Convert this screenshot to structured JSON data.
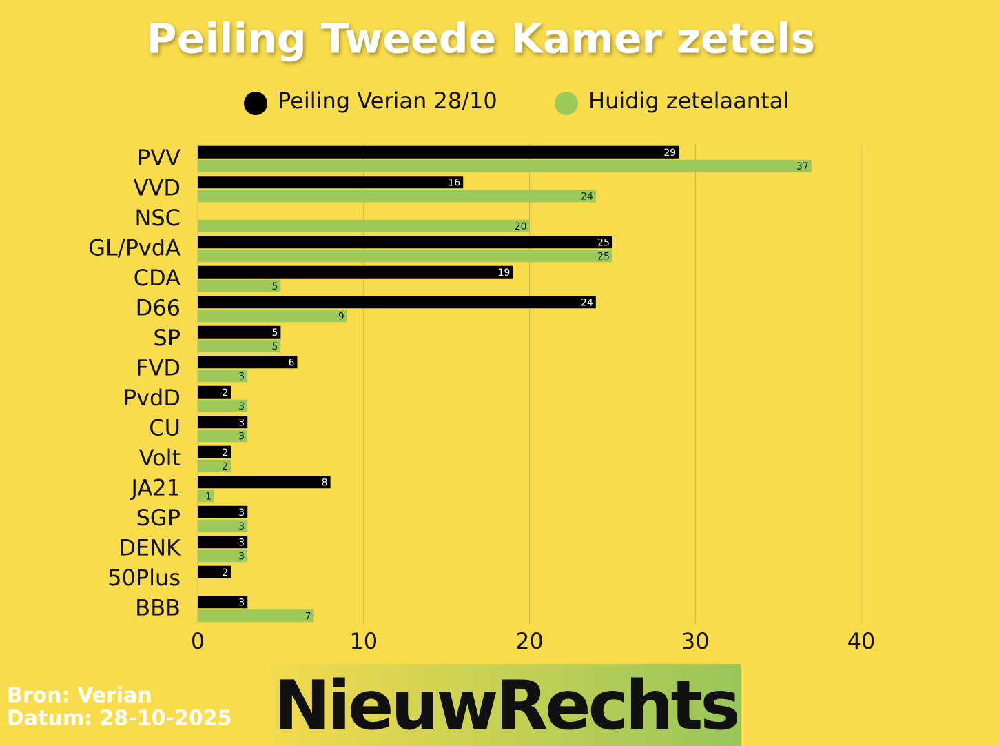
{
  "chart_data": {
    "type": "bar",
    "orientation": "horizontal",
    "title": "Peiling Tweede Kamer zetels",
    "categories": [
      "PVV",
      "VVD",
      "NSC",
      "GL/PvdA",
      "CDA",
      "D66",
      "SP",
      "FVD",
      "PvdD",
      "CU",
      "Volt",
      "JA21",
      "SGP",
      "DENK",
      "50Plus",
      "BBB"
    ],
    "series": [
      {
        "name": "Peiling Verian 28/10",
        "color": "#000000",
        "label_color": "#ffffff",
        "values": [
          29,
          16,
          null,
          25,
          19,
          24,
          5,
          6,
          2,
          3,
          2,
          8,
          3,
          3,
          2,
          3
        ]
      },
      {
        "name": "Huidig zetelaantal",
        "color": "#9cc95a",
        "label_color": "#1a1a1a",
        "values": [
          37,
          24,
          20,
          25,
          5,
          9,
          5,
          3,
          3,
          3,
          2,
          1,
          3,
          3,
          null,
          7
        ]
      }
    ],
    "xlim": [
      0,
      40
    ],
    "xticks": [
      0,
      10,
      20,
      30,
      40
    ],
    "grid": true,
    "legend": "top"
  },
  "footer": {
    "source": "Bron: Verian",
    "date": "Datum: 28-10-2025",
    "logo": "NieuwRechts"
  }
}
